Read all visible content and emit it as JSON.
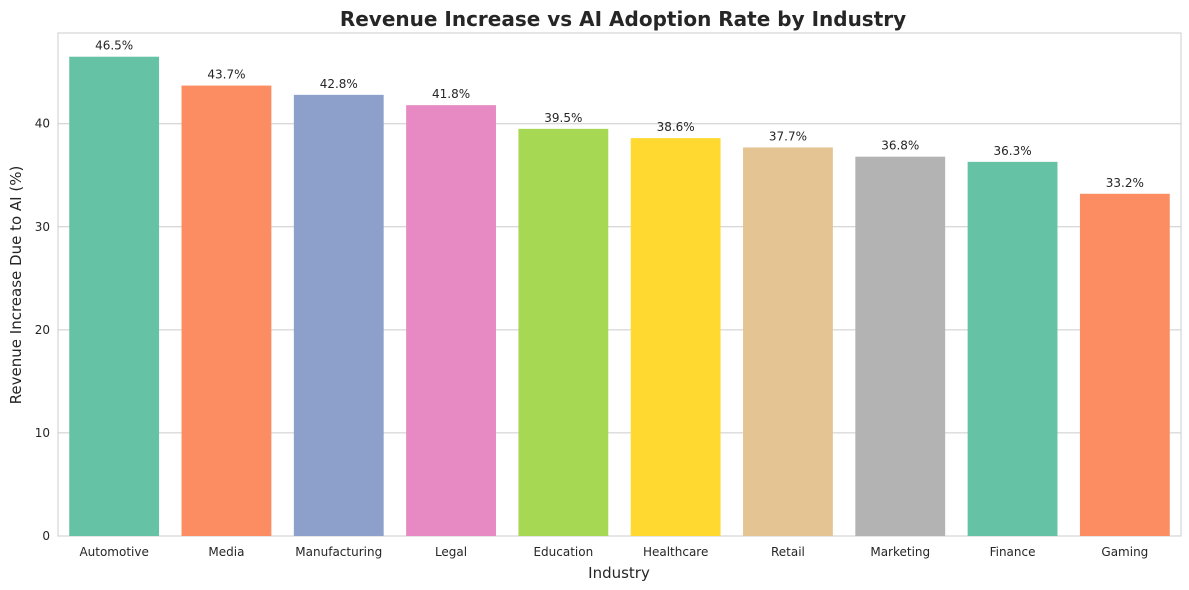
{
  "chart_data": {
    "type": "bar",
    "title": "Revenue Increase vs AI Adoption Rate by Industry",
    "xlabel": "Industry",
    "ylabel": "Revenue Increase Due to AI (%)",
    "categories": [
      "Automotive",
      "Media",
      "Manufacturing",
      "Legal",
      "Education",
      "Healthcare",
      "Retail",
      "Marketing",
      "Finance",
      "Gaming"
    ],
    "values": [
      46.5,
      43.7,
      42.8,
      41.8,
      39.5,
      38.6,
      37.7,
      36.8,
      36.3,
      33.2
    ],
    "data_labels": [
      "46.5%",
      "43.7%",
      "42.8%",
      "41.8%",
      "39.5%",
      "38.6%",
      "37.7%",
      "36.8%",
      "36.3%",
      "33.2%"
    ],
    "colors": [
      "#66c2a5",
      "#fc8d62",
      "#8da0cb",
      "#e78ac3",
      "#a6d854",
      "#ffd92f",
      "#e5c494",
      "#b3b3b3",
      "#66c2a5",
      "#fc8d62"
    ],
    "yticks": [
      0,
      10,
      20,
      30,
      40
    ],
    "ylim": [
      0,
      48.8
    ],
    "grid": "horizontal"
  }
}
